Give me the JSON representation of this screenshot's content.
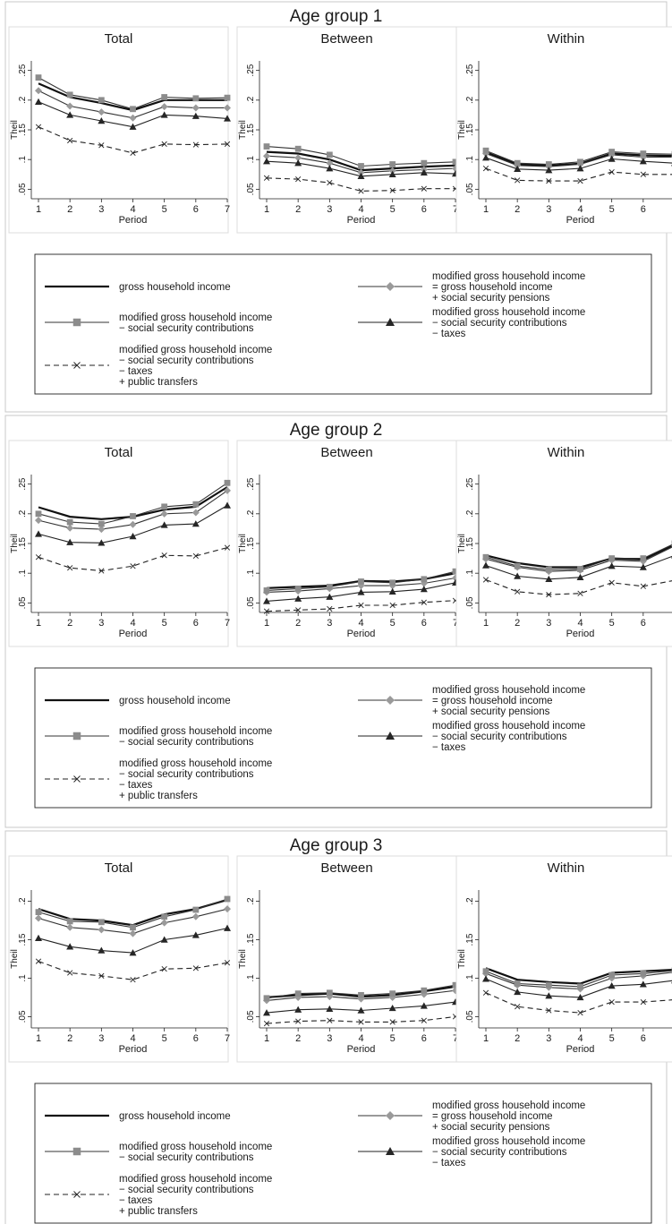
{
  "chart_data": {
    "type": "line",
    "panel_titles": [
      "Total",
      "Between",
      "Within"
    ],
    "xlabel": "Period",
    "ylabel": "Theil",
    "x": [
      1,
      2,
      3,
      4,
      5,
      6,
      7
    ],
    "series_labels": [
      [
        "gross household income"
      ],
      [
        "modified gross household income",
        "= gross household income",
        "+ social security pensions"
      ],
      [
        "modified gross household income",
        "− social security contributions"
      ],
      [
        "modified gross household income",
        "− social security contributions",
        "− taxes"
      ],
      [
        "modified gross household income",
        "− social security contributions",
        "− taxes",
        "+ public transfers"
      ]
    ],
    "groups": [
      {
        "title": "Age group 1",
        "ylim": [
          0.04,
          0.26
        ],
        "yticks": [
          0.05,
          0.1,
          0.15,
          0.2,
          0.25
        ],
        "ytick_labels": [
          ".05",
          ".1",
          ".15",
          ".2",
          ".25"
        ],
        "panels": [
          {
            "series": [
              {
                "values": [
                  0.228,
                  0.205,
                  0.195,
                  0.183,
                  0.2,
                  0.2,
                  0.2
                ]
              },
              {
                "values": [
                  0.216,
                  0.19,
                  0.18,
                  0.17,
                  0.189,
                  0.187,
                  0.187
                ]
              },
              {
                "values": [
                  0.238,
                  0.209,
                  0.2,
                  0.185,
                  0.205,
                  0.203,
                  0.204
                ]
              },
              {
                "values": [
                  0.197,
                  0.175,
                  0.165,
                  0.155,
                  0.175,
                  0.173,
                  0.169
                ]
              },
              {
                "values": [
                  0.155,
                  0.132,
                  0.124,
                  0.111,
                  0.126,
                  0.125,
                  0.126
                ]
              }
            ]
          },
          {
            "series": [
              {
                "values": [
                  0.113,
                  0.11,
                  0.1,
                  0.082,
                  0.085,
                  0.088,
                  0.09
                ]
              },
              {
                "values": [
                  0.106,
                  0.103,
                  0.094,
                  0.078,
                  0.081,
                  0.083,
                  0.085
                ]
              },
              {
                "values": [
                  0.122,
                  0.118,
                  0.108,
                  0.089,
                  0.092,
                  0.094,
                  0.096
                ]
              },
              {
                "values": [
                  0.097,
                  0.094,
                  0.085,
                  0.072,
                  0.075,
                  0.078,
                  0.076
                ]
              },
              {
                "values": [
                  0.069,
                  0.067,
                  0.061,
                  0.047,
                  0.048,
                  0.051,
                  0.051
                ]
              }
            ]
          },
          {
            "series": [
              {
                "values": [
                  0.112,
                  0.092,
                  0.09,
                  0.093,
                  0.11,
                  0.107,
                  0.106
                ]
              },
              {
                "values": [
                  0.11,
                  0.09,
                  0.088,
                  0.092,
                  0.108,
                  0.104,
                  0.104
                ]
              },
              {
                "values": [
                  0.115,
                  0.094,
                  0.092,
                  0.096,
                  0.113,
                  0.11,
                  0.109
                ]
              },
              {
                "values": [
                  0.103,
                  0.084,
                  0.082,
                  0.085,
                  0.101,
                  0.097,
                  0.094
                ]
              },
              {
                "values": [
                  0.085,
                  0.065,
                  0.064,
                  0.064,
                  0.079,
                  0.075,
                  0.075
                ]
              }
            ]
          }
        ]
      },
      {
        "title": "Age group 2",
        "ylim": [
          0.04,
          0.26
        ],
        "yticks": [
          0.05,
          0.1,
          0.15,
          0.2,
          0.25
        ],
        "ytick_labels": [
          ".05",
          ".1",
          ".15",
          ".2",
          ".25"
        ],
        "panels": [
          {
            "series": [
              {
                "values": [
                  0.211,
                  0.195,
                  0.191,
                  0.195,
                  0.207,
                  0.212,
                  0.245
                ]
              },
              {
                "values": [
                  0.189,
                  0.176,
                  0.174,
                  0.182,
                  0.2,
                  0.202,
                  0.239
                ]
              },
              {
                "values": [
                  0.2,
                  0.186,
                  0.183,
                  0.196,
                  0.212,
                  0.216,
                  0.252
                ]
              },
              {
                "values": [
                  0.166,
                  0.152,
                  0.151,
                  0.162,
                  0.181,
                  0.183,
                  0.214
                ]
              },
              {
                "values": [
                  0.127,
                  0.109,
                  0.104,
                  0.112,
                  0.13,
                  0.129,
                  0.143
                ]
              }
            ]
          },
          {
            "series": [
              {
                "values": [
                  0.075,
                  0.077,
                  0.079,
                  0.087,
                  0.086,
                  0.09,
                  0.1
                ]
              },
              {
                "values": [
                  0.068,
                  0.07,
                  0.074,
                  0.079,
                  0.079,
                  0.083,
                  0.092
                ]
              },
              {
                "values": [
                  0.071,
                  0.074,
                  0.077,
                  0.086,
                  0.084,
                  0.09,
                  0.103
                ]
              },
              {
                "values": [
                  0.053,
                  0.057,
                  0.06,
                  0.068,
                  0.069,
                  0.073,
                  0.084
                ]
              },
              {
                "values": [
                  0.036,
                  0.038,
                  0.04,
                  0.046,
                  0.046,
                  0.051,
                  0.054
                ]
              }
            ]
          },
          {
            "series": [
              {
                "values": [
                  0.13,
                  0.117,
                  0.11,
                  0.11,
                  0.125,
                  0.123,
                  0.148
                ]
              },
              {
                "values": [
                  0.124,
                  0.11,
                  0.103,
                  0.105,
                  0.122,
                  0.12,
                  0.146
                ]
              },
              {
                "values": [
                  0.127,
                  0.112,
                  0.106,
                  0.107,
                  0.125,
                  0.125,
                  0.15
                ]
              },
              {
                "values": [
                  0.113,
                  0.095,
                  0.09,
                  0.093,
                  0.112,
                  0.11,
                  0.13
                ]
              },
              {
                "values": [
                  0.089,
                  0.069,
                  0.064,
                  0.066,
                  0.084,
                  0.078,
                  0.088
                ]
              }
            ]
          }
        ]
      },
      {
        "title": "Age group 3",
        "ylim": [
          0.04,
          0.21
        ],
        "yticks": [
          0.05,
          0.1,
          0.15,
          0.2
        ],
        "ytick_labels": [
          ".05",
          ".1",
          ".15",
          ".2"
        ],
        "panels": [
          {
            "series": [
              {
                "values": [
                  0.19,
                  0.177,
                  0.175,
                  0.169,
                  0.183,
                  0.19,
                  0.202
                ]
              },
              {
                "values": [
                  0.178,
                  0.166,
                  0.163,
                  0.158,
                  0.172,
                  0.18,
                  0.19
                ]
              },
              {
                "values": [
                  0.186,
                  0.174,
                  0.173,
                  0.166,
                  0.18,
                  0.189,
                  0.203
                ]
              },
              {
                "values": [
                  0.152,
                  0.141,
                  0.136,
                  0.133,
                  0.15,
                  0.156,
                  0.165
                ]
              },
              {
                "values": [
                  0.122,
                  0.107,
                  0.103,
                  0.098,
                  0.112,
                  0.113,
                  0.12
                ]
              }
            ]
          },
          {
            "series": [
              {
                "values": [
                  0.075,
                  0.078,
                  0.08,
                  0.076,
                  0.078,
                  0.083,
                  0.089
                ]
              },
              {
                "values": [
                  0.071,
                  0.075,
                  0.076,
                  0.073,
                  0.075,
                  0.079,
                  0.084
                ]
              },
              {
                "values": [
                  0.074,
                  0.08,
                  0.081,
                  0.078,
                  0.08,
                  0.084,
                  0.091
                ]
              },
              {
                "values": [
                  0.055,
                  0.059,
                  0.06,
                  0.058,
                  0.061,
                  0.064,
                  0.069
                ]
              },
              {
                "values": [
                  0.041,
                  0.044,
                  0.045,
                  0.043,
                  0.043,
                  0.045,
                  0.05
                ]
              }
            ]
          },
          {
            "series": [
              {
                "values": [
                  0.113,
                  0.098,
                  0.095,
                  0.093,
                  0.107,
                  0.109,
                  0.111
                ]
              },
              {
                "values": [
                  0.106,
                  0.091,
                  0.088,
                  0.086,
                  0.1,
                  0.103,
                  0.108
                ]
              },
              {
                "values": [
                  0.109,
                  0.093,
                  0.091,
                  0.089,
                  0.104,
                  0.106,
                  0.11
                ]
              },
              {
                "values": [
                  0.099,
                  0.082,
                  0.077,
                  0.075,
                  0.09,
                  0.092,
                  0.097
                ]
              },
              {
                "values": [
                  0.081,
                  0.063,
                  0.058,
                  0.055,
                  0.069,
                  0.069,
                  0.072
                ]
              }
            ]
          }
        ]
      }
    ]
  }
}
